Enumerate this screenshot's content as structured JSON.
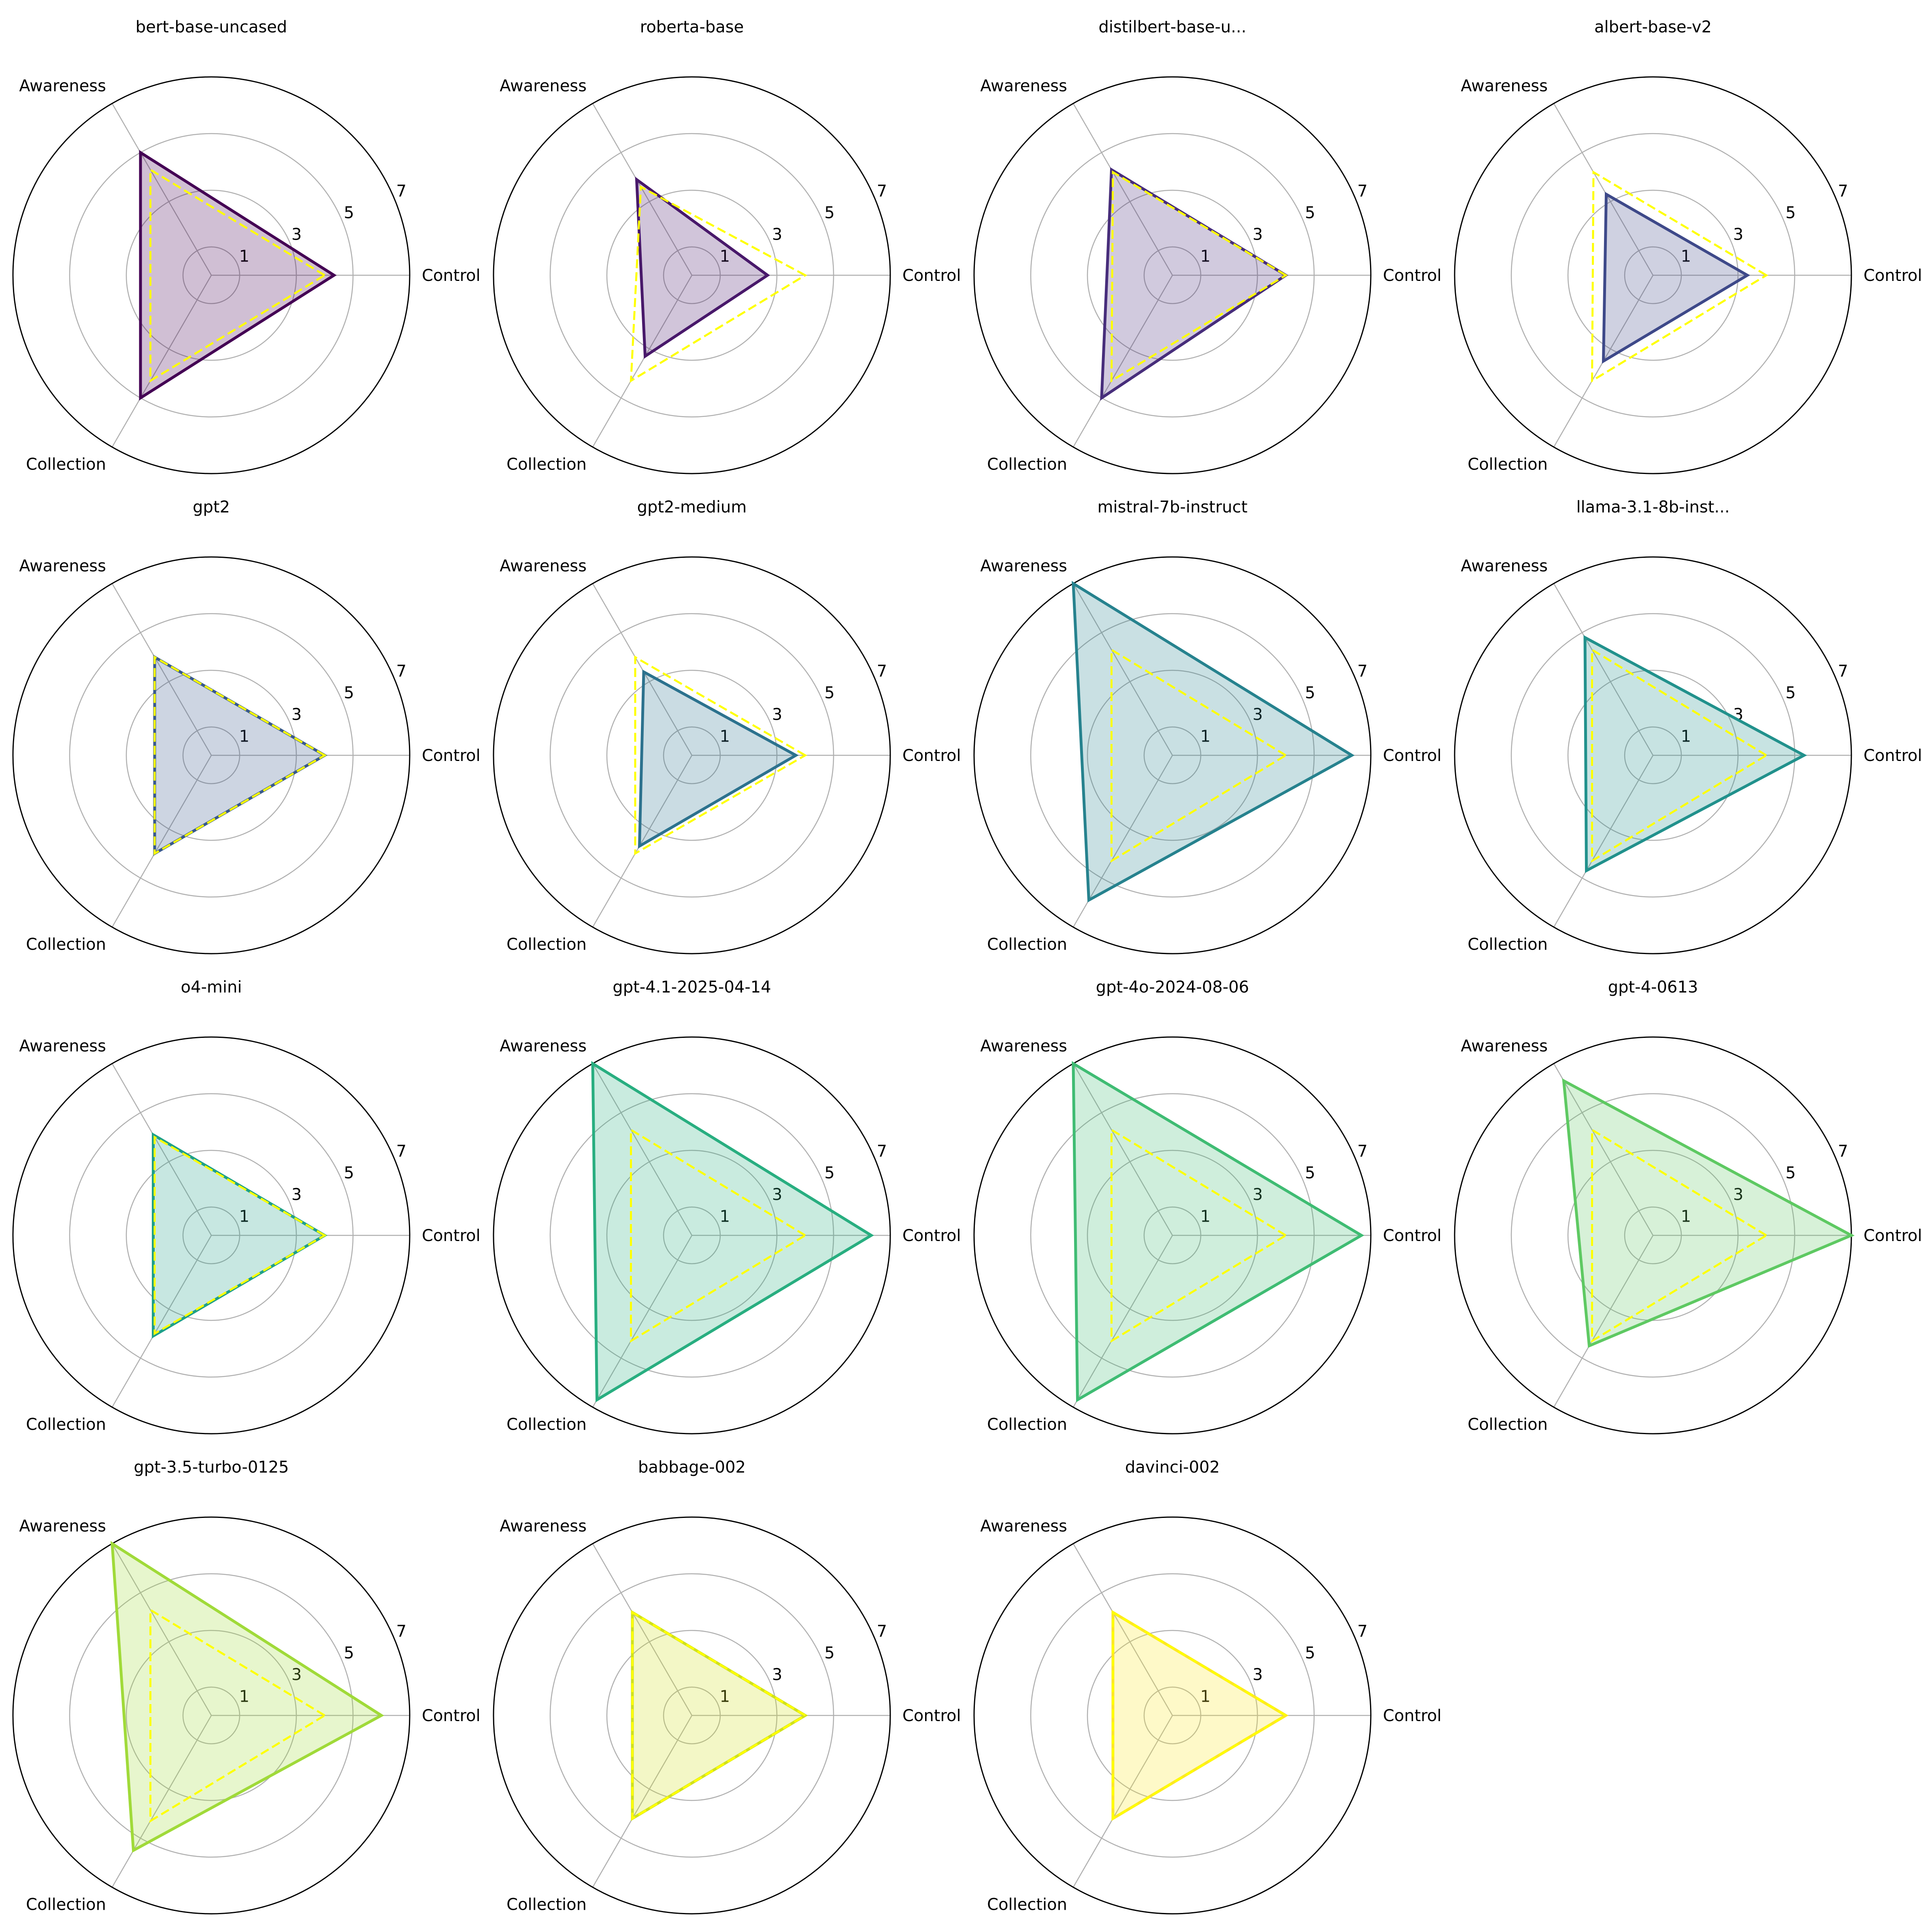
{
  "colors": {
    "baseline": "#ffff00",
    "grid": "#b0b0b0",
    "frame": "#000000"
  },
  "chart_data": {
    "type": "radar",
    "axes": [
      "Control",
      "Awareness",
      "Collection"
    ],
    "rlim": [
      0,
      7
    ],
    "rticks": [
      1,
      3,
      5,
      7
    ],
    "rtick_labels": [
      "1",
      "3",
      "5",
      "7"
    ],
    "grid": true,
    "baseline_style": "dashed",
    "panels": [
      {
        "title": "bert-base-uncased",
        "color": "#440154",
        "values": [
          4.33,
          5.0,
          5.0
        ],
        "baseline": [
          4.0,
          4.3,
          4.3
        ]
      },
      {
        "title": "roberta-base",
        "color": "#48186a",
        "values": [
          2.67,
          3.9,
          3.3
        ],
        "baseline": [
          4.0,
          3.6,
          4.3
        ]
      },
      {
        "title": "distilbert-base-u...",
        "color": "#472d7b",
        "values": [
          4.0,
          4.3,
          5.0
        ],
        "baseline": [
          4.0,
          4.2,
          4.3
        ]
      },
      {
        "title": "albert-base-v2",
        "color": "#3e4989",
        "values": [
          3.33,
          3.3,
          3.5
        ],
        "baseline": [
          4.0,
          4.2,
          4.3
        ]
      },
      {
        "title": "gpt2",
        "color": "#38598c",
        "values": [
          4.0,
          4.0,
          4.0
        ],
        "baseline": [
          4.0,
          4.0,
          4.0
        ]
      },
      {
        "title": "gpt2-medium",
        "color": "#2c728e",
        "values": [
          3.67,
          3.4,
          3.7
        ],
        "baseline": [
          4.0,
          4.0,
          4.0
        ]
      },
      {
        "title": "mistral-7b-instruct",
        "color": "#26828e",
        "values": [
          6.33,
          7.0,
          5.9
        ],
        "baseline": [
          4.0,
          4.3,
          4.3
        ]
      },
      {
        "title": "llama-3.1-8b-inst...",
        "color": "#21918c",
        "values": [
          5.33,
          4.8,
          4.7
        ],
        "baseline": [
          4.0,
          4.3,
          4.3
        ]
      },
      {
        "title": "o4-mini",
        "color": "#1fa088",
        "values": [
          4.0,
          4.1,
          4.1
        ],
        "baseline": [
          4.0,
          4.0,
          4.0
        ]
      },
      {
        "title": "gpt-4.1-2025-04-14",
        "color": "#28ae80",
        "values": [
          6.33,
          7.0,
          6.7
        ],
        "baseline": [
          4.0,
          4.3,
          4.3
        ]
      },
      {
        "title": "gpt-4o-2024-08-06",
        "color": "#3fbc73",
        "values": [
          6.67,
          7.0,
          6.7
        ],
        "baseline": [
          4.0,
          4.3,
          4.3
        ]
      },
      {
        "title": "gpt-4-0613",
        "color": "#5ec962",
        "values": [
          7.0,
          6.3,
          4.5
        ],
        "baseline": [
          4.0,
          4.3,
          4.3
        ]
      },
      {
        "title": "gpt-3.5-turbo-0125",
        "color": "#a0da39",
        "values": [
          6.0,
          7.0,
          5.5
        ],
        "baseline": [
          4.0,
          4.3,
          4.3
        ]
      },
      {
        "title": "babbage-002",
        "color": "#d0e11c",
        "values": [
          4.0,
          4.2,
          4.2
        ],
        "baseline": [
          4.0,
          4.2,
          4.2
        ]
      },
      {
        "title": "davinci-002",
        "color": "#fde725",
        "values": [
          4.0,
          4.2,
          4.2
        ],
        "baseline": [
          4.0,
          4.2,
          4.2
        ]
      }
    ]
  }
}
